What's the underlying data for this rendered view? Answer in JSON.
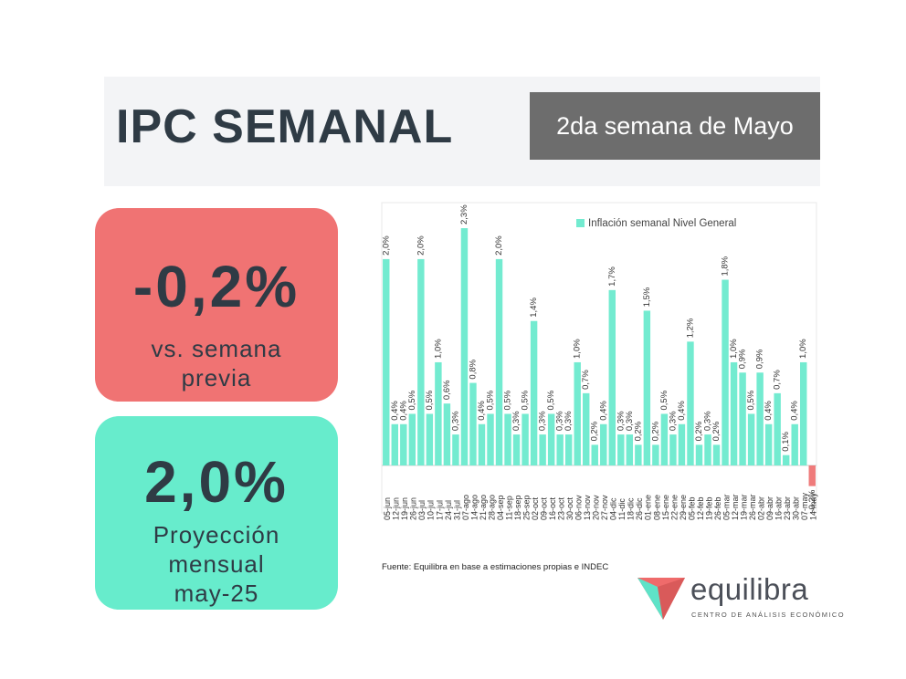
{
  "header": {
    "title": "IPC SEMANAL",
    "week_label": "2da semana de Mayo"
  },
  "cards": {
    "weekly": {
      "value": "-0,2%",
      "caption_line1": "vs. semana",
      "caption_line2": "previa"
    },
    "monthly": {
      "value": "2,0%",
      "caption_line1": "Proyección",
      "caption_line2": "mensual",
      "caption_line3": "may-25"
    }
  },
  "colors": {
    "positive_bar": "#73ebd0",
    "negative_bar": "#ef7b7b",
    "red_card": "#f07373",
    "green_card": "#67eccc",
    "text_dark": "#2f3b45"
  },
  "chart_data": {
    "type": "bar",
    "title": "",
    "xlabel": "",
    "ylabel": "",
    "legend": "Inflación semanal Nivel General",
    "legend_position": "top-right",
    "ylim": [
      -0.2,
      2.3
    ],
    "grid": false,
    "categories": [
      "05-jun",
      "12-jun",
      "19-jun",
      "26-jun",
      "03-jul",
      "10-jul",
      "17-jul",
      "24-jul",
      "31-jul",
      "07-ago",
      "14-ago",
      "21-ago",
      "28-ago",
      "04-sep",
      "11-sep",
      "18-sep",
      "25-sep",
      "02-oct",
      "09-oct",
      "16-oct",
      "23-oct",
      "30-oct",
      "06-nov",
      "13-nov",
      "20-nov",
      "27-nov",
      "04-dic",
      "11-dic",
      "18-dic",
      "26-dic",
      "01-ene",
      "08-ene",
      "15-ene",
      "22-ene",
      "29-ene",
      "05-feb",
      "12-feb",
      "19-feb",
      "26-feb",
      "05-mar",
      "12-mar",
      "19-mar",
      "26-mar",
      "02-abr",
      "09-abr",
      "16-abr",
      "23-abr",
      "30-abr",
      "07-may",
      "14-may"
    ],
    "values": [
      2.0,
      0.4,
      0.4,
      0.5,
      2.0,
      0.5,
      1.0,
      0.6,
      0.3,
      2.3,
      0.8,
      0.4,
      0.5,
      2.0,
      0.5,
      0.3,
      0.5,
      1.4,
      0.3,
      0.5,
      0.3,
      0.3,
      1.0,
      0.7,
      0.2,
      0.4,
      1.7,
      0.3,
      0.3,
      0.2,
      1.5,
      0.2,
      0.5,
      0.3,
      0.4,
      1.2,
      0.2,
      0.3,
      0.2,
      1.8,
      1.0,
      0.9,
      0.5,
      0.9,
      0.4,
      0.7,
      0.1,
      0.4,
      1.0,
      -0.2
    ],
    "data_labels": [
      "2,0%",
      "0,4%",
      "0,4%",
      "0,5%",
      "2,0%",
      "0,5%",
      "1,0%",
      "0,6%",
      "0,3%",
      "2,3%",
      "0,8%",
      "0,4%",
      "0,5%",
      "2,0%",
      "0,5%",
      "0,3%",
      "0,5%",
      "1,4%",
      "0,3%",
      "0,5%",
      "0,3%",
      "0,3%",
      "1,0%",
      "0,7%",
      "0,2%",
      "0,4%",
      "1,7%",
      "0,3%",
      "0,3%",
      "0,2%",
      "1,5%",
      "0,2%",
      "0,5%",
      "0,3%",
      "0,4%",
      "1,2%",
      "0,2%",
      "0,3%",
      "0,2%",
      "1,8%",
      "1,0%",
      "0,9%",
      "0,5%",
      "0,9%",
      "0,4%",
      "0,7%",
      "0,1%",
      "0,4%",
      "1,0%",
      "-0,2%"
    ]
  },
  "footer": {
    "source": "Fuente: Equilibra en base a estimaciones propias e INDEC",
    "brand_name": "equilibra",
    "brand_tagline": "CENTRO DE ANÁLISIS ECONÓMICO"
  }
}
